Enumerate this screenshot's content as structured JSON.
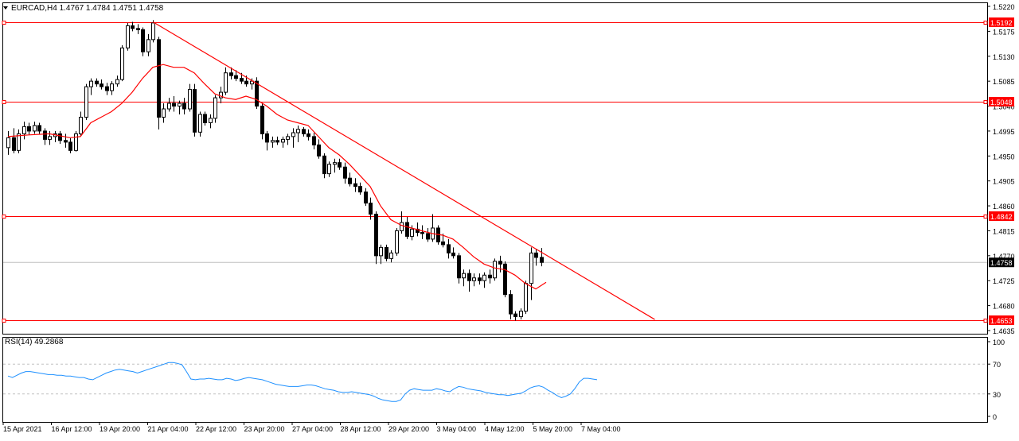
{
  "header": {
    "symbol_line": "EURCAD,H4  1.4767 1.4784 1.4751 1.4758",
    "menu_icon": "triangle-down-icon"
  },
  "rsi_panel": {
    "label": "RSI(14) 49.2868"
  },
  "colors": {
    "bull_candle": "#ffffff",
    "bear_candle": "#000000",
    "level_line": "#ff0000",
    "moving_average": "#ff0000",
    "trend_line": "#ff0000",
    "rsi_line": "#1e90ff",
    "current_price_line": "#c0c0c0",
    "rsi_level_line": "#c0c0c0"
  },
  "chart_data": [
    {
      "type": "candlestick",
      "symbol": "EURCAD",
      "timeframe": "H4",
      "ylim": [
        1.4635,
        1.522
      ],
      "y_ticks": [
        "1.5220",
        "1.5175",
        "1.5130",
        "1.5085",
        "1.5040",
        "1.4995",
        "1.4950",
        "1.4905",
        "1.4860",
        "1.4815",
        "1.4770",
        "1.4725",
        "1.4680",
        "1.4635"
      ],
      "x_ticks": [
        "15 Apr 2021",
        "16 Apr 12:00",
        "19 Apr 20:00",
        "21 Apr 04:00",
        "22 Apr 12:00",
        "23 Apr 20:00",
        "27 Apr 04:00",
        "28 Apr 12:00",
        "29 Apr 20:00",
        "3 May 04:00",
        "4 May 12:00",
        "5 May 20:00",
        "7 May 04:00"
      ],
      "levels": [
        {
          "price": 1.5192,
          "label": "1.5192"
        },
        {
          "price": 1.5048,
          "label": "1.5048"
        },
        {
          "price": 1.4842,
          "label": "1.4842"
        },
        {
          "price": 1.4653,
          "label": "1.4653"
        }
      ],
      "current_price": {
        "price": 1.4758,
        "label": "1.4758"
      },
      "trend_line": {
        "from": [
          28,
          1.5192
        ],
        "to": [
          125,
          1.4655
        ]
      },
      "ohlc": [
        [
          1.4965,
          1.4995,
          1.4952,
          1.4983
        ],
        [
          1.4983,
          1.5,
          1.4955,
          1.496
        ],
        [
          1.496,
          1.4998,
          1.4955,
          1.499
        ],
        [
          1.499,
          1.5012,
          1.498,
          1.5003
        ],
        [
          1.5003,
          1.501,
          1.4988,
          1.4995
        ],
        [
          1.4995,
          1.5012,
          1.499,
          1.5005
        ],
        [
          1.5005,
          1.501,
          1.499,
          1.4995
        ],
        [
          1.4995,
          1.5,
          1.497,
          1.498
        ],
        [
          1.498,
          1.4995,
          1.497,
          1.4985
        ],
        [
          1.4985,
          1.4995,
          1.4975,
          1.499
        ],
        [
          1.499,
          1.4995,
          1.4972,
          1.4978
        ],
        [
          1.4978,
          1.499,
          1.4965,
          1.4975
        ],
        [
          1.4975,
          1.4982,
          1.4955,
          1.496
        ],
        [
          1.496,
          1.4995,
          1.4958,
          1.499
        ],
        [
          1.499,
          1.503,
          1.4985,
          1.502
        ],
        [
          1.502,
          1.508,
          1.5015,
          1.5075
        ],
        [
          1.5075,
          1.509,
          1.506,
          1.5085
        ],
        [
          1.5085,
          1.509,
          1.5075,
          1.508
        ],
        [
          1.508,
          1.5088,
          1.507,
          1.5075
        ],
        [
          1.5075,
          1.5082,
          1.506,
          1.5068
        ],
        [
          1.5068,
          1.5085,
          1.506,
          1.508
        ],
        [
          1.508,
          1.5095,
          1.5075,
          1.5088
        ],
        [
          1.5088,
          1.515,
          1.5085,
          1.5145
        ],
        [
          1.5145,
          1.519,
          1.514,
          1.5185
        ],
        [
          1.5185,
          1.5192,
          1.5175,
          1.518
        ],
        [
          1.518,
          1.5188,
          1.517,
          1.5178
        ],
        [
          1.5178,
          1.5182,
          1.513,
          1.5138
        ],
        [
          1.5138,
          1.517,
          1.513,
          1.516
        ],
        [
          1.516,
          1.5195,
          1.5155,
          1.519
        ],
        [
          1.516,
          1.5165,
          1.4998,
          1.502
        ],
        [
          1.502,
          1.5045,
          1.501,
          1.5035
        ],
        [
          1.5035,
          1.5055,
          1.503,
          1.5045
        ],
        [
          1.5045,
          1.5058,
          1.503,
          1.504
        ],
        [
          1.504,
          1.505,
          1.5025,
          1.5045
        ],
        [
          1.5045,
          1.5055,
          1.5025,
          1.5035
        ],
        [
          1.5035,
          1.508,
          1.503,
          1.507
        ],
        [
          1.507,
          1.508,
          1.4985,
          1.4993
        ],
        [
          1.4993,
          1.503,
          1.4985,
          1.5025
        ],
        [
          1.5025,
          1.503,
          1.5005,
          1.501
        ],
        [
          1.501,
          1.5025,
          1.5,
          1.5018
        ],
        [
          1.5018,
          1.506,
          1.501,
          1.5055
        ],
        [
          1.5055,
          1.5075,
          1.5045,
          1.5065
        ],
        [
          1.5065,
          1.511,
          1.506,
          1.51
        ],
        [
          1.51,
          1.511,
          1.5088,
          1.5095
        ],
        [
          1.5095,
          1.5105,
          1.5085,
          1.509
        ],
        [
          1.509,
          1.51,
          1.508,
          1.5085
        ],
        [
          1.5085,
          1.5095,
          1.5075,
          1.508
        ],
        [
          1.508,
          1.509,
          1.507,
          1.5085
        ],
        [
          1.5085,
          1.5092,
          1.5035,
          1.504
        ],
        [
          1.504,
          1.5045,
          1.498,
          1.499
        ],
        [
          1.499,
          1.4995,
          1.496,
          1.4975
        ],
        [
          1.4975,
          1.4985,
          1.4965,
          1.4978
        ],
        [
          1.4978,
          1.4985,
          1.497,
          1.4975
        ],
        [
          1.4975,
          1.4985,
          1.4965,
          1.498
        ],
        [
          1.498,
          1.499,
          1.497,
          1.4985
        ],
        [
          1.4985,
          1.5,
          1.4965,
          1.4992
        ],
        [
          1.4992,
          1.5005,
          1.4975,
          1.4998
        ],
        [
          1.4998,
          1.5002,
          1.4985,
          1.499
        ],
        [
          1.499,
          1.4998,
          1.4978,
          1.4985
        ],
        [
          1.4985,
          1.4992,
          1.4962,
          1.497
        ],
        [
          1.497,
          1.498,
          1.4945,
          1.495
        ],
        [
          1.495,
          1.4955,
          1.491,
          1.4918
        ],
        [
          1.4918,
          1.494,
          1.4912,
          1.4935
        ],
        [
          1.4935,
          1.4945,
          1.492,
          1.4938
        ],
        [
          1.4938,
          1.4945,
          1.4925,
          1.493
        ],
        [
          1.493,
          1.4938,
          1.49,
          1.491
        ],
        [
          1.491,
          1.492,
          1.4895,
          1.49
        ],
        [
          1.49,
          1.491,
          1.4885,
          1.4895
        ],
        [
          1.4895,
          1.4902,
          1.488,
          1.4885
        ],
        [
          1.4885,
          1.4892,
          1.486,
          1.4865
        ],
        [
          1.4865,
          1.4875,
          1.4835,
          1.4845
        ],
        [
          1.4845,
          1.485,
          1.4755,
          1.477
        ],
        [
          1.477,
          1.479,
          1.4755,
          1.4785
        ],
        [
          1.4785,
          1.479,
          1.476,
          1.4765
        ],
        [
          1.4765,
          1.478,
          1.4758,
          1.4775
        ],
        [
          1.4775,
          1.482,
          1.477,
          1.4815
        ],
        [
          1.4815,
          1.485,
          1.481,
          1.483
        ],
        [
          1.483,
          1.484,
          1.48,
          1.4805
        ],
        [
          1.4805,
          1.4825,
          1.4798,
          1.4818
        ],
        [
          1.4818,
          1.483,
          1.4805,
          1.4812
        ],
        [
          1.4812,
          1.4825,
          1.48,
          1.481
        ],
        [
          1.481,
          1.482,
          1.4795,
          1.48
        ],
        [
          1.48,
          1.4845,
          1.4795,
          1.482
        ],
        [
          1.482,
          1.4825,
          1.479,
          1.4795
        ],
        [
          1.4795,
          1.481,
          1.4785,
          1.479
        ],
        [
          1.479,
          1.48,
          1.4765,
          1.4775
        ],
        [
          1.4775,
          1.4785,
          1.4765,
          1.477
        ],
        [
          1.477,
          1.4775,
          1.472,
          1.473
        ],
        [
          1.473,
          1.4745,
          1.4715,
          1.4738
        ],
        [
          1.4738,
          1.4745,
          1.4705,
          1.4725
        ],
        [
          1.4725,
          1.4738,
          1.4715,
          1.473
        ],
        [
          1.473,
          1.4738,
          1.4718,
          1.4725
        ],
        [
          1.4725,
          1.474,
          1.4712,
          1.4735
        ],
        [
          1.4735,
          1.4745,
          1.472,
          1.473
        ],
        [
          1.473,
          1.4765,
          1.4725,
          1.476
        ],
        [
          1.476,
          1.477,
          1.474,
          1.4755
        ],
        [
          1.4755,
          1.476,
          1.4695,
          1.47
        ],
        [
          1.47,
          1.4708,
          1.4655,
          1.4665
        ],
        [
          1.4665,
          1.467,
          1.4653,
          1.466
        ],
        [
          1.466,
          1.4675,
          1.4655,
          1.467
        ],
        [
          1.467,
          1.4725,
          1.4665,
          1.472
        ],
        [
          1.472,
          1.4785,
          1.469,
          1.4775
        ],
        [
          1.4775,
          1.4782,
          1.4752,
          1.4767
        ],
        [
          1.4767,
          1.4784,
          1.4751,
          1.4758
        ]
      ],
      "moving_average": [
        [
          0,
          1.4985
        ],
        [
          4,
          1.4988
        ],
        [
          8,
          1.499
        ],
        [
          12,
          1.4983
        ],
        [
          14,
          1.4985
        ],
        [
          16,
          1.501
        ],
        [
          20,
          1.503
        ],
        [
          22,
          1.5045
        ],
        [
          24,
          1.5065
        ],
        [
          26,
          1.509
        ],
        [
          28,
          1.511
        ],
        [
          30,
          1.5115
        ],
        [
          32,
          1.511
        ],
        [
          34,
          1.511
        ],
        [
          36,
          1.51
        ],
        [
          38,
          1.508
        ],
        [
          40,
          1.5062
        ],
        [
          42,
          1.5055
        ],
        [
          44,
          1.5052
        ],
        [
          46,
          1.5058
        ],
        [
          48,
          1.5052
        ],
        [
          50,
          1.504
        ],
        [
          52,
          1.5025
        ],
        [
          54,
          1.5015
        ],
        [
          56,
          1.501
        ],
        [
          58,
          1.5005
        ],
        [
          60,
          1.4985
        ],
        [
          62,
          1.4965
        ],
        [
          64,
          1.4952
        ],
        [
          66,
          1.4935
        ],
        [
          68,
          1.4915
        ],
        [
          70,
          1.4895
        ],
        [
          72,
          1.486
        ],
        [
          74,
          1.4835
        ],
        [
          76,
          1.4825
        ],
        [
          78,
          1.482
        ],
        [
          80,
          1.4815
        ],
        [
          82,
          1.481
        ],
        [
          84,
          1.4807
        ],
        [
          86,
          1.48
        ],
        [
          88,
          1.4785
        ],
        [
          90,
          1.4768
        ],
        [
          92,
          1.4755
        ],
        [
          94,
          1.4748
        ],
        [
          96,
          1.4745
        ],
        [
          98,
          1.4735
        ],
        [
          100,
          1.472
        ],
        [
          102,
          1.471
        ],
        [
          104,
          1.4722
        ]
      ]
    },
    {
      "type": "line",
      "title": "RSI(14) 49.2868",
      "ylim": [
        0,
        100
      ],
      "y_ticks": [
        "100",
        "70",
        "30",
        "0"
      ],
      "levels": [
        70,
        30
      ],
      "series": [
        {
          "values": [
            54,
            52,
            55,
            58,
            60,
            60,
            59,
            58,
            57,
            56,
            56,
            55,
            55,
            54,
            54,
            53,
            52,
            52,
            50,
            49,
            52,
            55,
            58,
            60,
            62,
            63,
            62,
            61,
            60,
            58,
            60,
            62,
            64,
            66,
            68,
            70,
            72,
            72,
            71,
            69,
            60,
            50,
            49,
            50,
            50,
            51,
            50,
            49,
            49,
            51,
            50,
            48,
            49,
            51,
            52,
            51,
            50,
            49,
            47,
            45,
            43,
            42,
            41,
            40,
            40,
            40,
            41,
            42,
            42,
            41,
            39,
            37,
            36,
            35,
            33,
            32,
            32,
            33,
            32,
            31,
            30,
            29,
            27,
            24,
            22,
            21,
            20,
            20,
            22,
            30,
            35,
            37,
            36,
            35,
            35,
            35,
            37,
            36,
            34,
            33,
            37,
            40,
            39,
            37,
            36,
            35,
            34,
            32,
            31,
            30,
            29,
            29,
            28,
            29,
            30,
            31,
            34,
            38,
            40,
            41,
            39,
            35,
            32,
            28,
            25,
            27,
            30,
            37,
            46,
            51,
            51,
            50,
            49
          ]
        }
      ]
    }
  ]
}
